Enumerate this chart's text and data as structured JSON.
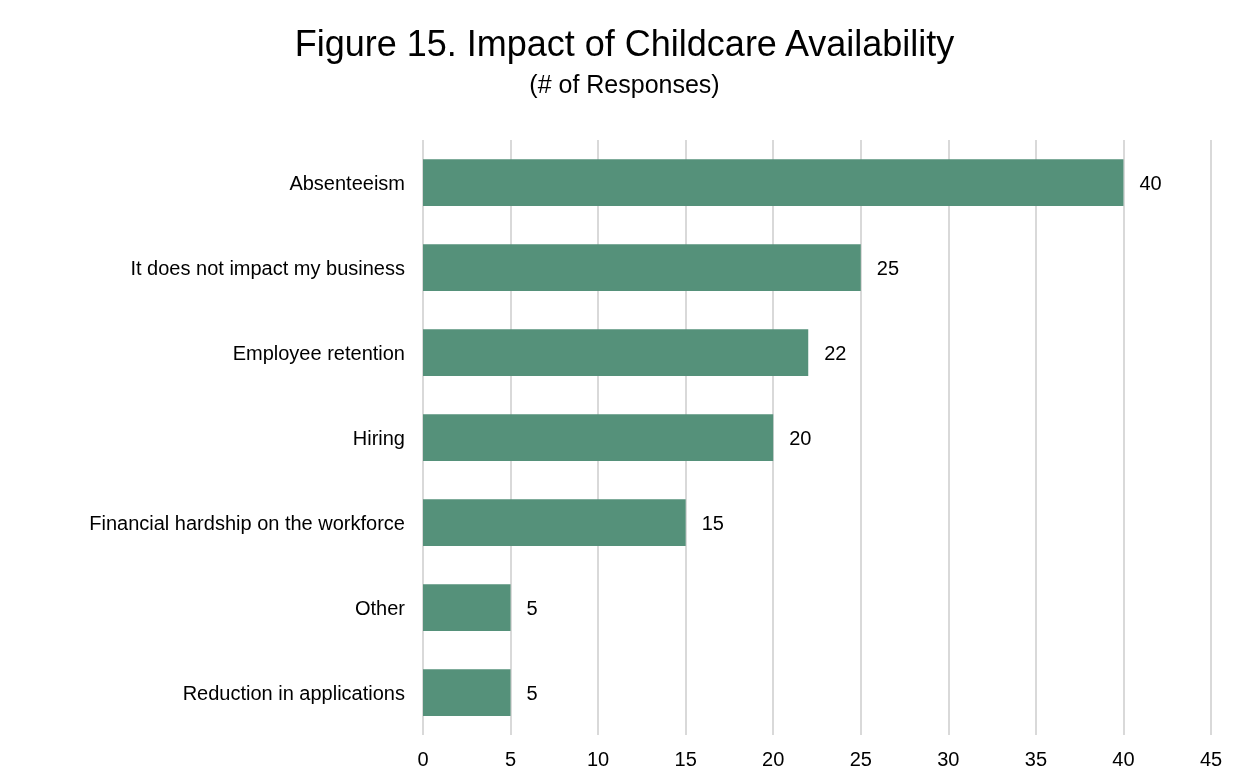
{
  "chart_data": {
    "type": "bar",
    "orientation": "horizontal",
    "title": "Figure 15. Impact of Childcare Availability",
    "subtitle": "(# of Responses)",
    "categories": [
      "Absenteeism",
      "It does not impact my business",
      "Employee retention",
      "Hiring",
      "Financial hardship on the workforce",
      "Other",
      "Reduction in applications"
    ],
    "values": [
      40,
      25,
      22,
      20,
      15,
      5,
      5
    ],
    "color": "#55917a",
    "xlim": [
      0,
      45
    ],
    "xticks": [
      0,
      5,
      10,
      15,
      20,
      25,
      30,
      35,
      40,
      45
    ],
    "grid": "x",
    "data_labels": true
  }
}
